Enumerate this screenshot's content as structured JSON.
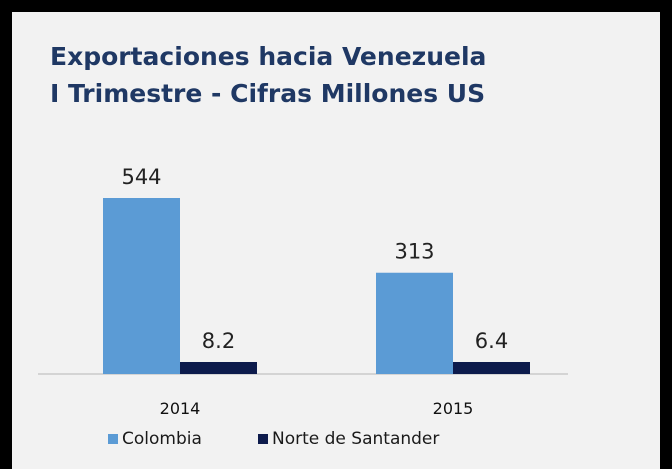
{
  "chart_data": {
    "type": "bar",
    "title": "Exportaciones hacia Venezuela",
    "subtitle": "I Trimestre - Cifras Millones US",
    "categories": [
      "2014",
      "2015"
    ],
    "series": [
      {
        "name": "Colombia",
        "values": [
          544,
          313
        ],
        "labels": [
          "544",
          "313"
        ],
        "color": "#5b9bd5"
      },
      {
        "name": "Norte de Santander",
        "values": [
          8.2,
          6.4
        ],
        "labels": [
          "8.2",
          "6.4"
        ],
        "color": "#0d1b4c"
      }
    ],
    "legend_position": "bottom",
    "grid": false
  }
}
